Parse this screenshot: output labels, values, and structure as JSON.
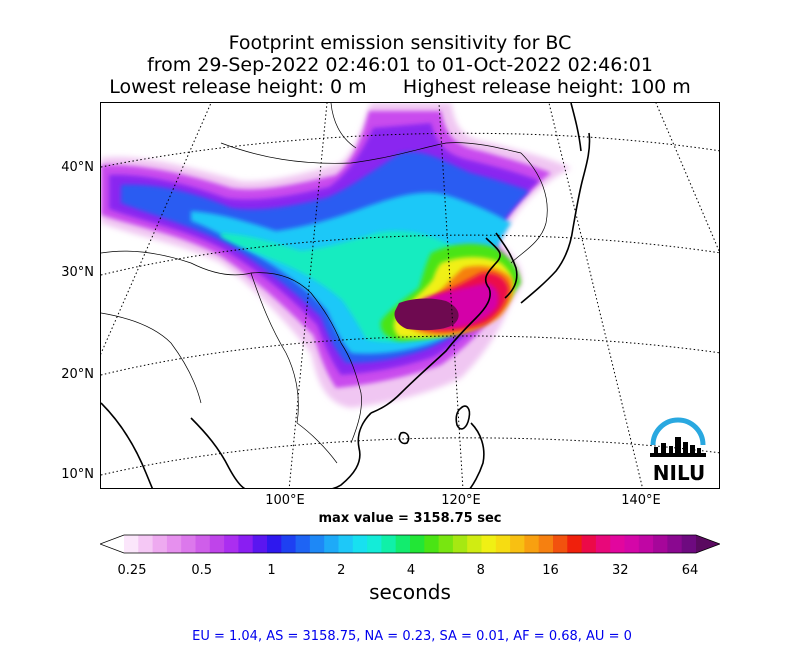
{
  "title": {
    "line1": "Footprint emission sensitivity for BC",
    "line2": "from 29-Sep-2022 02:46:01 to 01-Oct-2022 02:46:01",
    "line3_left": "Lowest release height: 0 m",
    "line3_right": "Highest release height: 100 m"
  },
  "map": {
    "lat_labels": [
      "40°N",
      "30°N",
      "20°N",
      "10°N"
    ],
    "lon_labels": [
      "100°E",
      "120°E",
      "140°E"
    ],
    "logo_text": "NILU",
    "max_value": "max value = 3158.75 sec"
  },
  "colorbar": {
    "tick_labels": [
      "0.25",
      "0.5",
      "1",
      "2",
      "4",
      "8",
      "16",
      "32",
      "64"
    ],
    "unit_label": "seconds",
    "colors": [
      "#fbe6fb",
      "#f5c8f5",
      "#eeaaf0",
      "#e690ee",
      "#dc78ec",
      "#cf5eea",
      "#bf44ea",
      "#ab2ef0",
      "#8a1ef2",
      "#5a16f0",
      "#2e18ee",
      "#1e40f2",
      "#1e64f4",
      "#1e88f6",
      "#1eaaf8",
      "#1ec8f8",
      "#18e0f0",
      "#14ecd8",
      "#10f0a8",
      "#12ec6e",
      "#22e636",
      "#4ae414",
      "#78e610",
      "#a6e812",
      "#d0ec12",
      "#f0f014",
      "#f6dc12",
      "#f8c012",
      "#f8a010",
      "#f68010",
      "#f2520e",
      "#f0200c",
      "#ec0a48",
      "#e8087a",
      "#e2069e",
      "#d406a8",
      "#c006a4",
      "#a6069a",
      "#8a0890",
      "#6e0a80"
    ]
  },
  "stats": "EU = 1.04,  AS = 3158.75,  NA = 0.23,  SA = 0.01,  AF = 0.68,  AU = 0",
  "colors": {
    "stats_text": "#0000ee",
    "logo_arc": "#29a8e0"
  }
}
